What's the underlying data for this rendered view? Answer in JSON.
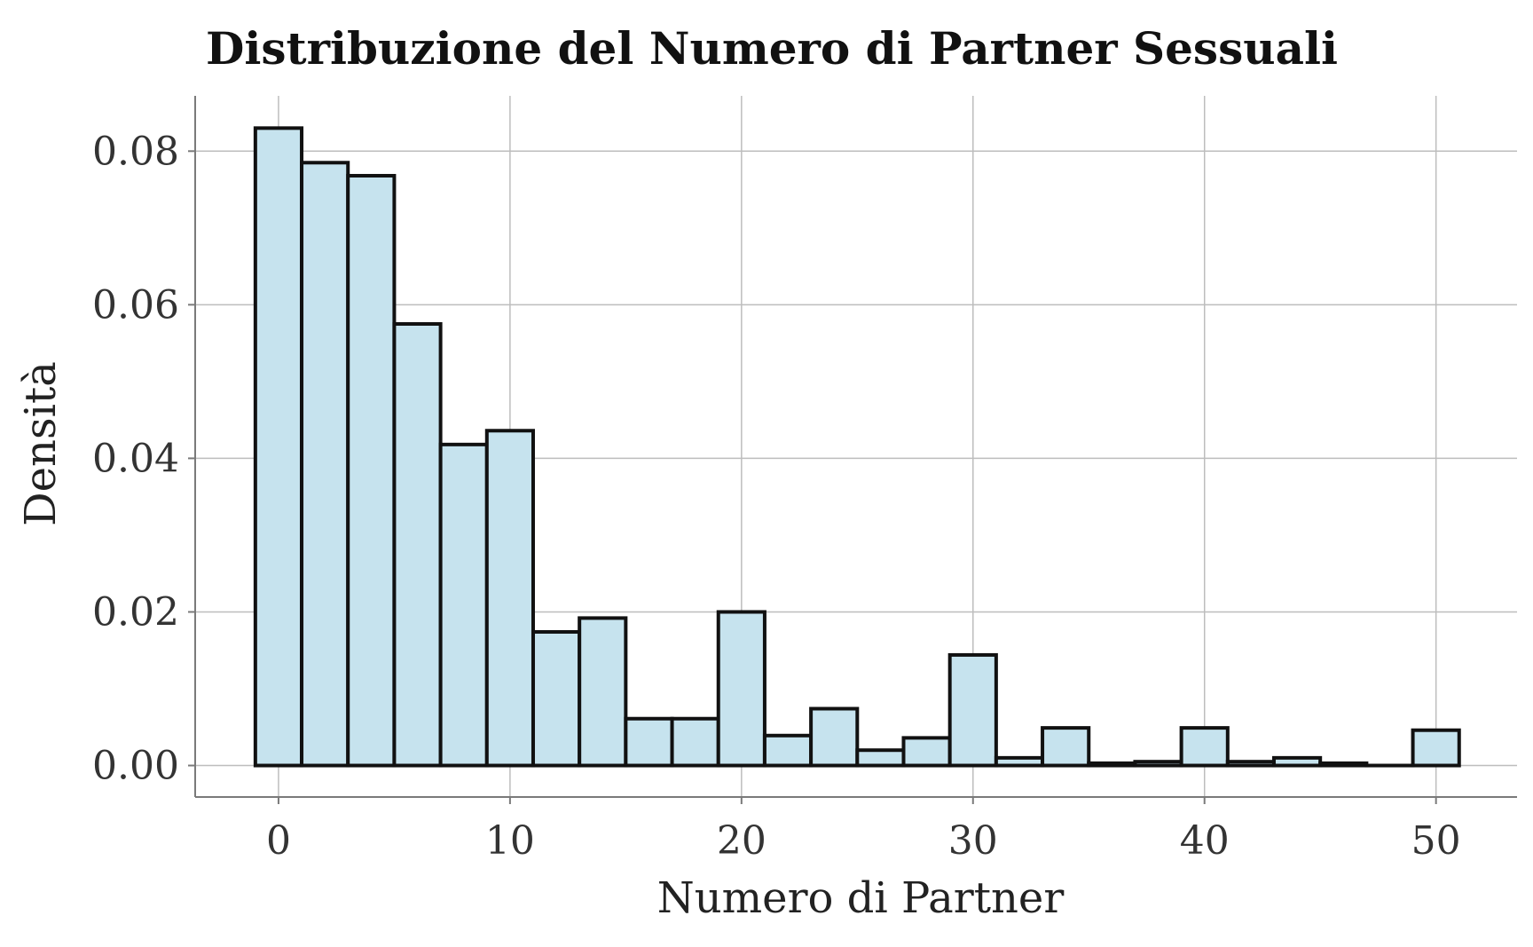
{
  "chart_data": {
    "type": "bar",
    "title": "Distribuzione del Numero di Partner Sessuali",
    "xlabel": "Numero di Partner",
    "ylabel": "Densità",
    "xlim": [
      -3.6,
      53.5
    ],
    "ylim": [
      -0.0041,
      0.0872
    ],
    "x_ticks": [
      0,
      10,
      20,
      30,
      40,
      50
    ],
    "x_tick_labels": [
      "0",
      "10",
      "20",
      "30",
      "40",
      "50"
    ],
    "y_ticks": [
      0.0,
      0.02,
      0.04,
      0.06,
      0.08
    ],
    "y_tick_labels": [
      "0.00",
      "0.02",
      "0.04",
      "0.06",
      "0.08"
    ],
    "grid": true,
    "bin_width": 2,
    "bin_edges": [
      -1,
      1,
      3,
      5,
      7,
      9,
      11,
      13,
      15,
      17,
      19,
      21,
      23,
      25,
      27,
      29,
      31,
      33,
      35,
      37,
      39,
      41,
      43,
      45,
      47,
      49,
      51
    ],
    "values": [
      0.083,
      0.0785,
      0.0768,
      0.0575,
      0.0418,
      0.0436,
      0.0174,
      0.0192,
      0.0061,
      0.0061,
      0.02,
      0.0039,
      0.0074,
      0.002,
      0.0036,
      0.0144,
      0.001,
      0.0049,
      0.0003,
      0.0005,
      0.0049,
      0.0005,
      0.001,
      0.0003,
      0.0,
      0.0046
    ],
    "colors": {
      "bar_fill": "#c6e3ee",
      "bar_edge": "#111111",
      "grid": "#bdbdbd"
    }
  }
}
